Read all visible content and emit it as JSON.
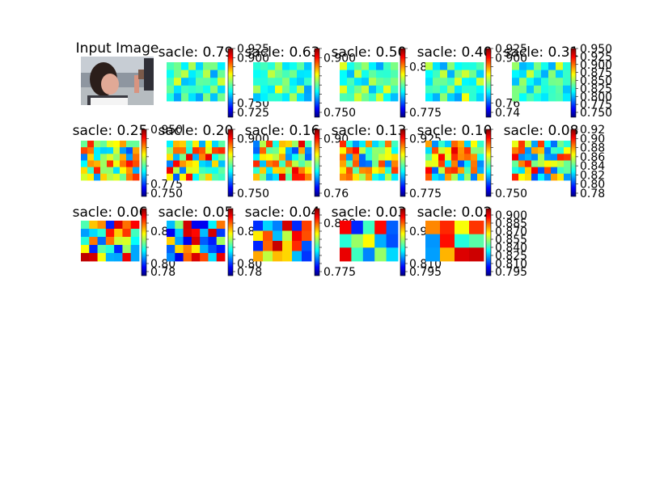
{
  "figure": {
    "input_image": {
      "title": "Input Image",
      "content": "photo of a person looking at a small object"
    },
    "colormap": "jet",
    "colormap_stops": [
      "#00007f",
      "#0000ff",
      "#007fff",
      "#00ffff",
      "#7fff7f",
      "#ffff00",
      "#ff7f00",
      "#ff0000",
      "#7f0000"
    ]
  },
  "chart_data": [
    {
      "type": "heatmap",
      "title": "sacle: 0.79",
      "colorbar_ticks": [
        "0.925",
        "0.900",
        "",
        "",
        "",
        "",
        "0.750",
        "0.725"
      ],
      "pattern": "edges",
      "grid": [
        5,
        8
      ]
    },
    {
      "type": "heatmap",
      "title": "sacle: 0.63",
      "colorbar_ticks": [
        "",
        "0.900",
        "",
        "",
        "",
        "",
        "",
        "0.750"
      ],
      "pattern": "edges",
      "grid": [
        5,
        8
      ]
    },
    {
      "type": "heatmap",
      "title": "sacle: 0.50",
      "colorbar_ticks": [
        "",
        "",
        "0.88",
        "",
        "",
        "",
        "",
        "0.775"
      ],
      "pattern": "edges",
      "grid": [
        5,
        8
      ]
    },
    {
      "type": "heatmap",
      "title": "sacle: 0.40",
      "colorbar_ticks": [
        "0.925",
        "0.900",
        "",
        "",
        "",
        "",
        "0.76",
        "0.74"
      ],
      "pattern": "edges",
      "grid": [
        5,
        8
      ]
    },
    {
      "type": "heatmap",
      "title": "sacle: 0.31",
      "colorbar_ticks": [
        "0.950",
        "0.925",
        "0.900",
        "0.875",
        "0.850",
        "0.825",
        "0.800",
        "0.775",
        "0.750"
      ],
      "pattern": "edges",
      "grid": [
        5,
        8
      ]
    },
    {
      "type": "heatmap",
      "title": "sacle: 0.25",
      "colorbar_ticks": [
        "0.950",
        "",
        "",
        "",
        "",
        "",
        "0.775",
        "0.750"
      ],
      "pattern": "blob",
      "grid": [
        6,
        9
      ]
    },
    {
      "type": "heatmap",
      "title": "sacle: 0.20",
      "colorbar_ticks": [
        "",
        "0.900",
        "",
        "",
        "",
        "",
        "",
        "0.750"
      ],
      "pattern": "blob",
      "grid": [
        6,
        9
      ]
    },
    {
      "type": "heatmap",
      "title": "sacle: 0.16",
      "colorbar_ticks": [
        "",
        "0.90",
        "",
        "",
        "",
        "",
        "",
        "0.76"
      ],
      "pattern": "blob",
      "grid": [
        6,
        9
      ]
    },
    {
      "type": "heatmap",
      "title": "sacle: 0.13",
      "colorbar_ticks": [
        "",
        "0.925",
        "",
        "",
        "",
        "",
        "",
        "0.775"
      ],
      "pattern": "blob",
      "grid": [
        6,
        9
      ]
    },
    {
      "type": "heatmap",
      "title": "sacle: 0.10",
      "colorbar_ticks": [
        "",
        "",
        "",
        "",
        "",
        "",
        "",
        "0.750"
      ],
      "pattern": "blob",
      "grid": [
        6,
        9
      ]
    },
    {
      "type": "heatmap",
      "title": "sacle: 0.08",
      "colorbar_ticks": [
        "0.92",
        "0.90",
        "0.88",
        "0.86",
        "0.84",
        "0.82",
        "0.80",
        "0.78"
      ],
      "pattern": "blob",
      "grid": [
        6,
        9
      ]
    },
    {
      "type": "heatmap",
      "title": "sacle: 0.06",
      "colorbar_ticks": [
        "",
        "",
        "0.86",
        "",
        "",
        "",
        "0.80",
        "0.78"
      ],
      "pattern": "coarse",
      "grid": [
        5,
        7
      ]
    },
    {
      "type": "heatmap",
      "title": "sacle: 0.05",
      "colorbar_ticks": [
        "",
        "",
        "0.86",
        "",
        "",
        "",
        "0.80",
        "0.78"
      ],
      "pattern": "coarse",
      "grid": [
        5,
        7
      ]
    },
    {
      "type": "heatmap",
      "title": "sacle: 0.04",
      "colorbar_ticks": [
        "",
        "0.888",
        "",
        "",
        "",
        "",
        "",
        "0.775"
      ],
      "pattern": "coarse",
      "grid": [
        4,
        6
      ]
    },
    {
      "type": "heatmap",
      "title": "sacle: 0.03",
      "colorbar_ticks": [
        "",
        "",
        "0.900",
        "",
        "",
        "",
        "0.810",
        "0.795"
      ],
      "pattern": "coarse",
      "grid": [
        3,
        5
      ]
    },
    {
      "type": "heatmap",
      "title": "sacle: 0.02",
      "colorbar_ticks": [
        "0.900",
        "0.885",
        "0.870",
        "0.855",
        "0.840",
        "0.825",
        "0.810",
        "0.795"
      ],
      "pattern": "coarse",
      "grid": [
        3,
        4
      ]
    }
  ]
}
